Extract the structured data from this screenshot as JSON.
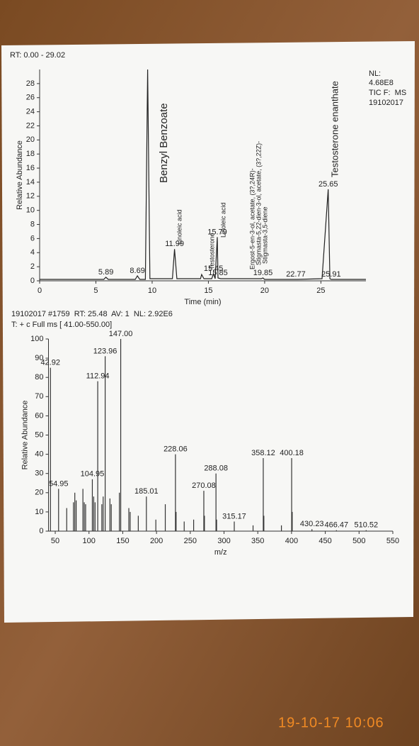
{
  "timestamp": "19-10-17 10:06",
  "chart_data": [
    {
      "type": "line",
      "subtitle": "RT: 0.00 - 29.02",
      "notes": [
        "NL:",
        "4.68E8",
        "TIC F:  MS",
        "19102017"
      ],
      "xlabel": "Time (min)",
      "ylabel": "Relative Abundance",
      "x": [
        0,
        5.7,
        5.89,
        6.1,
        8.5,
        8.69,
        8.9,
        9.4,
        9.6,
        9.8,
        11.8,
        11.99,
        12.2,
        14.3,
        14.4,
        14.6,
        15.3,
        15.45,
        15.6,
        15.79,
        15.85,
        16.1,
        19.7,
        19.85,
        20.0,
        22.6,
        22.77,
        22.9,
        25.1,
        25.65,
        25.8,
        25.91,
        26.1,
        29
      ],
      "values": [
        0.2,
        0.2,
        0.5,
        0.2,
        0.2,
        0.7,
        0.2,
        0.2,
        30,
        0.3,
        0.3,
        4.5,
        0.3,
        0.3,
        0.9,
        0.3,
        0.3,
        1.0,
        0.3,
        6.2,
        0.4,
        0.3,
        0.3,
        0.4,
        0.2,
        0.2,
        0.2,
        0.2,
        0.3,
        13,
        0.3,
        0.2,
        0.2,
        0.2
      ],
      "color": "#222222",
      "annotations": [
        "Benzyl Benzoate",
        "Linoleic acid",
        "Testosterone",
        "Linoleic acid",
        "Ergost-5-en-3-ol, acetate, (3?,24R)-",
        "Stigmasta-5,22-dien-3-ol, acetate, (3?,22Z)-",
        "Stigmasta-3,5-diene",
        "Testosterone enanthate"
      ],
      "xlim": [
        0,
        29
      ],
      "xticks": [
        0,
        5,
        10,
        15,
        20,
        25
      ],
      "ylim": [
        0,
        30
      ],
      "yticks": [
        0,
        2,
        4,
        6,
        8,
        10,
        12,
        14,
        16,
        18,
        20,
        22,
        24,
        26,
        28
      ]
    },
    {
      "type": "stick",
      "notes": [
        "19102017 #1759  RT: 25.48  AV: 1  NL: 2.92E6",
        "T: + c Full ms [ 41.00-550.00]"
      ],
      "xlabel": "m/z",
      "ylabel": "Relative Abundance",
      "x": [
        42.92,
        54.95,
        67,
        77,
        79,
        81,
        91,
        93,
        95,
        104.95,
        107,
        109,
        112.94,
        119,
        121,
        123.96,
        131,
        133,
        145,
        147,
        159,
        161,
        173,
        185.01,
        199,
        213,
        228.06,
        229,
        241,
        255,
        270.08,
        271,
        288.08,
        289,
        315.17,
        343,
        358.12,
        359,
        385,
        400.18,
        401,
        430.23,
        466.47,
        510.52
      ],
      "values": [
        85,
        22,
        12,
        15,
        20,
        16,
        22,
        15,
        14,
        27,
        18,
        15,
        78,
        14,
        18,
        91,
        17,
        14,
        20,
        100,
        12,
        10,
        8,
        18,
        6,
        14,
        40,
        10,
        5,
        6,
        21,
        8,
        30,
        6,
        5,
        3,
        38,
        8,
        3,
        38,
        10,
        1,
        0.5,
        0.5
      ],
      "peak_labels": [
        "42.92",
        "54.95",
        null,
        null,
        null,
        null,
        null,
        null,
        null,
        "104.95",
        null,
        null,
        "112.94",
        null,
        null,
        "123.96",
        null,
        null,
        null,
        "147.00",
        null,
        null,
        null,
        "185.01",
        null,
        null,
        "228.06",
        null,
        null,
        null,
        "270.08",
        null,
        "288.08",
        null,
        "315.17",
        null,
        "358.12",
        null,
        null,
        "400.18",
        null,
        "430.23",
        "466.47",
        "510.52"
      ],
      "color": "#333333",
      "xlim": [
        40,
        550
      ],
      "xticks": [
        50,
        100,
        150,
        200,
        250,
        300,
        350,
        400,
        450,
        500,
        550
      ],
      "ylim": [
        0,
        100
      ],
      "yticks": [
        0,
        10,
        20,
        30,
        40,
        50,
        60,
        70,
        80,
        90,
        100
      ]
    }
  ]
}
